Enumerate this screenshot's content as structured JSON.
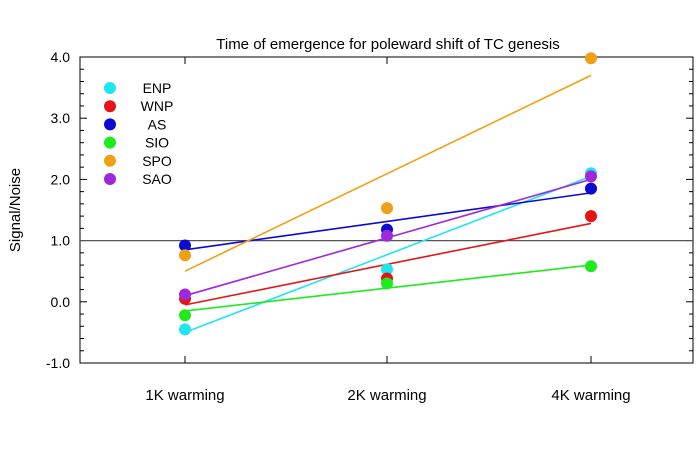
{
  "chart_data": {
    "type": "scatter",
    "title": "Time of emergence for poleward shift of TC genesis",
    "xlabel": "",
    "ylabel": "Signal/Noise",
    "categories": [
      "1K warming",
      "2K warming",
      "4K warming"
    ],
    "ylim": [
      -1.0,
      4.0
    ],
    "yticks": [
      "-1.0",
      "0.0",
      "1.0",
      "2.0",
      "3.0",
      "4.0"
    ],
    "reference_line": 1.0,
    "legend_position": "top-left",
    "series": [
      {
        "name": "ENP",
        "color": "#1ee6f0",
        "values": [
          -0.45,
          0.53,
          2.1
        ],
        "fit": [
          -0.5,
          2.05
        ]
      },
      {
        "name": "WNP",
        "color": "#e61414",
        "values": [
          0.05,
          0.38,
          1.4
        ],
        "fit": [
          -0.05,
          1.28
        ]
      },
      {
        "name": "AS",
        "color": "#0a0ad2",
        "values": [
          0.92,
          1.18,
          1.85
        ],
        "fit": [
          0.85,
          1.78
        ]
      },
      {
        "name": "SIO",
        "color": "#1eeb1e",
        "values": [
          -0.22,
          0.3,
          0.58
        ],
        "fit": [
          -0.15,
          0.6
        ]
      },
      {
        "name": "SPO",
        "color": "#f0a014",
        "values": [
          0.76,
          1.53,
          3.98
        ],
        "fit": [
          0.5,
          3.7
        ]
      },
      {
        "name": "SAO",
        "color": "#a028dc",
        "values": [
          0.12,
          1.08,
          2.05
        ],
        "fit": [
          0.1,
          2.0
        ]
      }
    ]
  }
}
